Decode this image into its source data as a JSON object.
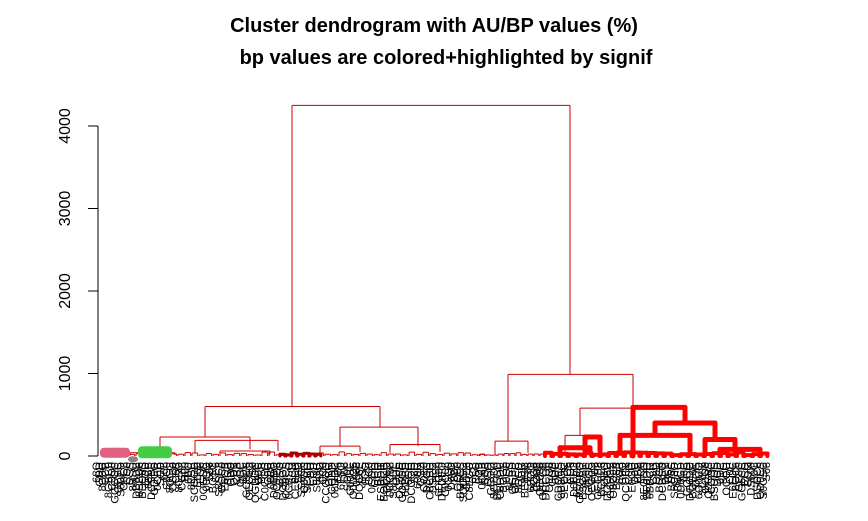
{
  "chart_data": {
    "type": "dendrogram",
    "title": "Cluster dendrogram with AU/BP values (%)",
    "subtitle": "bp values are colored+highlighted by signif",
    "xlabel": "",
    "ylabel": "",
    "ylim": [
      0,
      4300
    ],
    "yticks": [
      0,
      1000,
      2000,
      3000,
      4000
    ],
    "grid": false,
    "colors": {
      "branch": "#cc0000",
      "highlight": "#ff0000",
      "au": "#e06080",
      "bp": "#44cc44",
      "edge": "#888888"
    },
    "merges": [
      {
        "name": "root",
        "height": 4250
      },
      {
        "name": "left-main",
        "height": 600
      },
      {
        "name": "right-main",
        "height": 990
      },
      {
        "name": "left-sub-a",
        "height": 230
      },
      {
        "name": "left-sub-b",
        "height": 350
      },
      {
        "name": "right-sub-a",
        "height": 180
      },
      {
        "name": "right-sub-b",
        "height": 580
      },
      {
        "name": "hl-top",
        "height": 590
      },
      {
        "name": "hl-mid",
        "height": 400
      },
      {
        "name": "hl-low-a",
        "height": 250
      },
      {
        "name": "hl-low-b",
        "height": 200
      }
    ],
    "leaf_count": 220
  }
}
